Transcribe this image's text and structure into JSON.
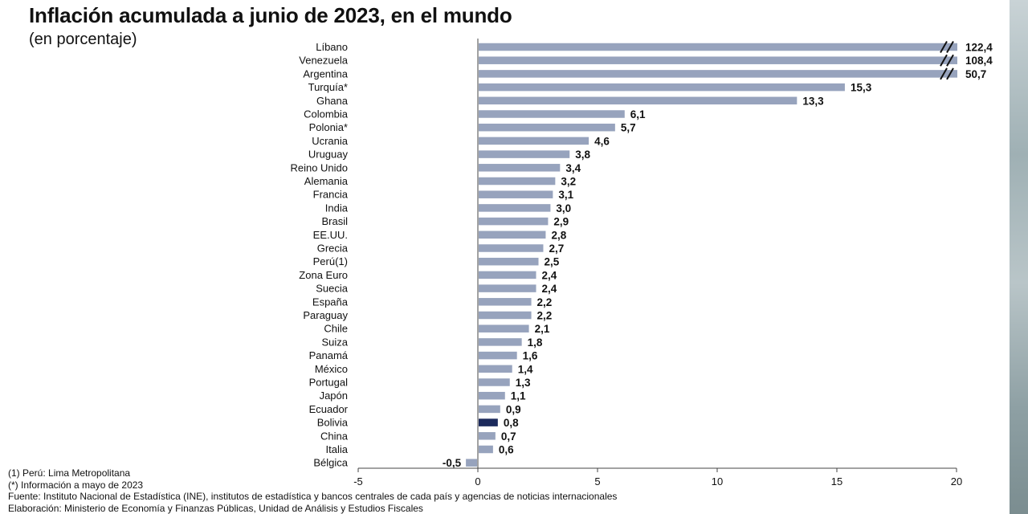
{
  "header": {
    "title": "Inflación acumulada a junio de 2023, en el mundo",
    "subtitle": "(en porcentaje)"
  },
  "notes": [
    "(1) Perú: Lima Metropolitana",
    "(*) Información a mayo de 2023",
    "Fuente: Instituto Nacional de Estadística (INE), institutos de estadística y bancos centrales de cada país y agencias de noticias internacionales",
    "Elaboración: Ministerio de Economía y Finanzas Públicas, Unidad de Análisis y Estudios Fiscales"
  ],
  "colors": {
    "bar": "#97a3bd",
    "highlight": "#1b2a5c",
    "axis": "#444444",
    "text": "#111111"
  },
  "chart_data": {
    "type": "bar",
    "orientation": "horizontal",
    "xlim": [
      -5,
      20
    ],
    "xticks": [
      "-5",
      "0",
      "5",
      "10",
      "15",
      "20"
    ],
    "axis_break_over": 20,
    "highlight": "Bolivia",
    "grid": false,
    "categories": [
      "Líbano",
      "Venezuela",
      "Argentina",
      "Turquía*",
      "Ghana",
      "Colombia",
      "Polonia*",
      "Ucrania",
      "Uruguay",
      "Reino Unido",
      "Alemania",
      "Francia",
      "India",
      "Brasil",
      "EE.UU.",
      "Grecia",
      "Perú(1)",
      "Zona Euro",
      "Suecia",
      "España",
      "Paraguay",
      "Chile",
      "Suiza",
      "Panamá",
      "México",
      "Portugal",
      "Japón",
      "Ecuador",
      "Bolivia",
      "China",
      "Italia",
      "Bélgica"
    ],
    "values": [
      122.4,
      108.4,
      50.7,
      15.3,
      13.3,
      6.1,
      5.7,
      4.6,
      3.8,
      3.4,
      3.2,
      3.1,
      3.0,
      2.9,
      2.8,
      2.7,
      2.5,
      2.4,
      2.4,
      2.2,
      2.2,
      2.1,
      1.8,
      1.6,
      1.4,
      1.3,
      1.1,
      0.9,
      0.8,
      0.7,
      0.6,
      -0.5
    ],
    "value_labels": [
      "122,4",
      "108,4",
      "50,7",
      "15,3",
      "13,3",
      "6,1",
      "5,7",
      "4,6",
      "3,8",
      "3,4",
      "3,2",
      "3,1",
      "3,0",
      "2,9",
      "2,8",
      "2,7",
      "2,5",
      "2,4",
      "2,4",
      "2,2",
      "2,2",
      "2,1",
      "1,8",
      "1,6",
      "1,4",
      "1,3",
      "1,1",
      "0,9",
      "0,8",
      "0,7",
      "0,6",
      "-0,5"
    ]
  }
}
